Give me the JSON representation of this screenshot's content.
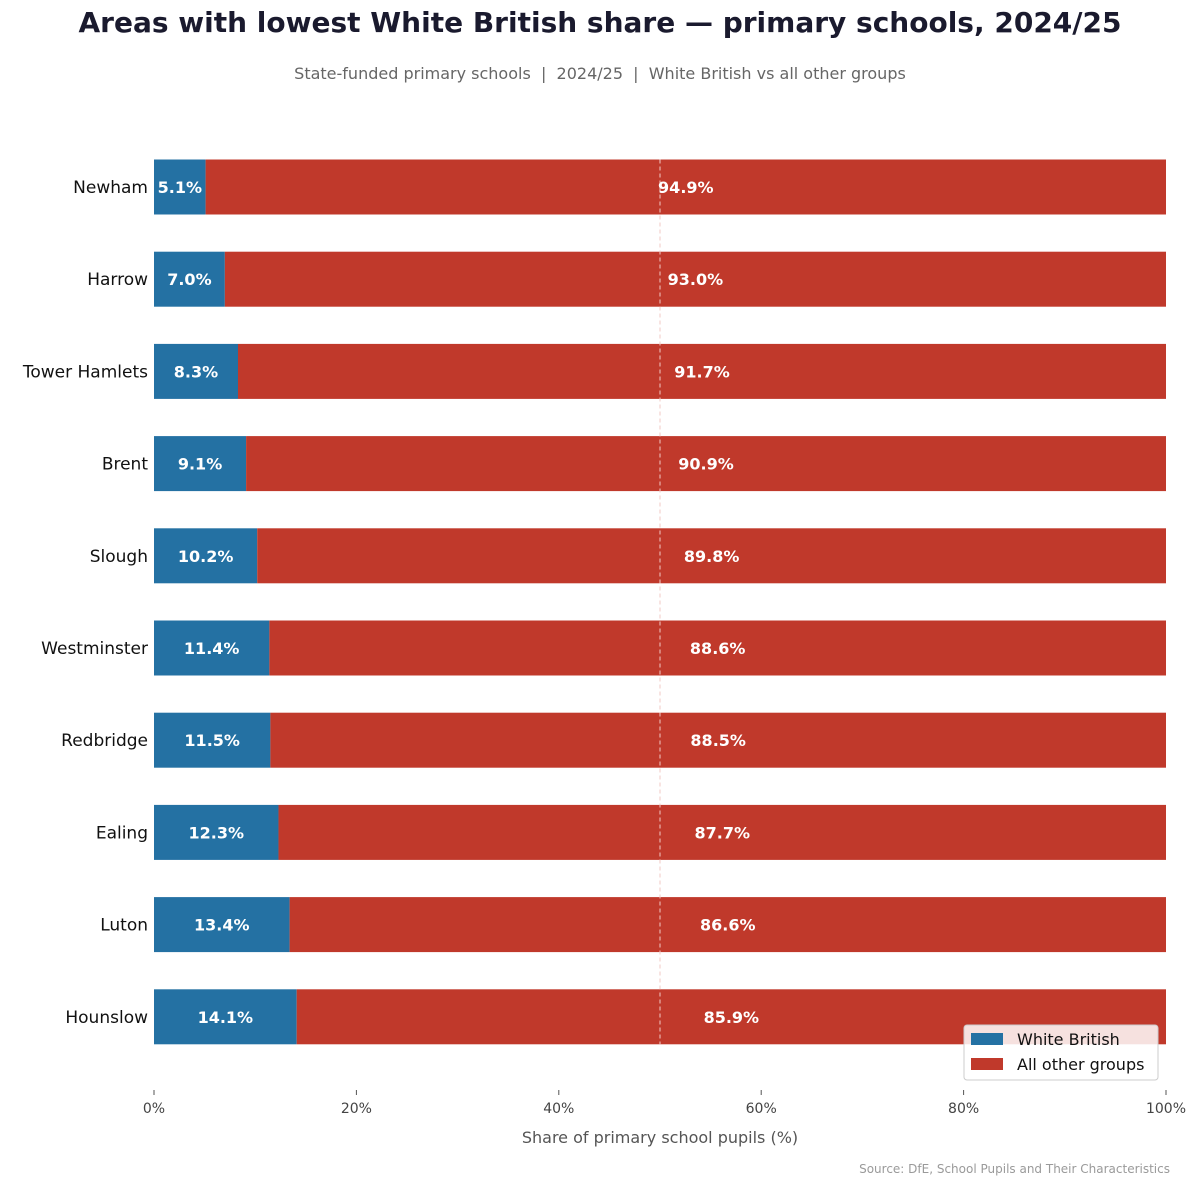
{
  "chart_data": {
    "type": "bar",
    "orientation": "horizontal",
    "stacked": true,
    "title": "Areas with lowest White British share — primary schools, 2024/25",
    "subtitle": "State-funded primary schools  |  2024/25  |  White British vs all other groups",
    "xlabel": "Share of primary school pupils (%)",
    "ylabel": "",
    "xlim": [
      0,
      100
    ],
    "xticks": [
      "0%",
      "20%",
      "40%",
      "60%",
      "80%",
      "100%"
    ],
    "reference_line": 50,
    "categories": [
      "Newham",
      "Harrow",
      "Tower Hamlets",
      "Brent",
      "Slough",
      "Westminster",
      "Redbridge",
      "Ealing",
      "Luton",
      "Hounslow"
    ],
    "series": [
      {
        "name": "White British",
        "color": "#2471a3",
        "values": [
          5.1,
          7.0,
          8.3,
          9.1,
          10.2,
          11.4,
          11.5,
          12.3,
          13.4,
          14.1
        ]
      },
      {
        "name": "All other groups",
        "color": "#c0392b",
        "values": [
          94.9,
          93.0,
          91.7,
          90.9,
          89.8,
          88.6,
          88.5,
          87.7,
          86.6,
          85.9
        ]
      }
    ],
    "legend": "bottom-right",
    "grid": false
  },
  "source": "Source: DfE, School Pupils and Their Characteristics"
}
